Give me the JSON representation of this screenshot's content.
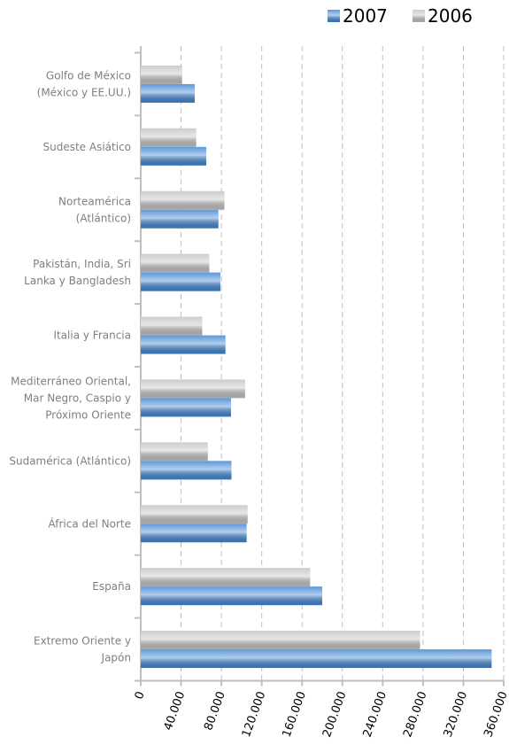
{
  "chart_data": {
    "type": "hbar",
    "categories": [
      [
        "Golfo de México",
        "(México y EE.UU.)"
      ],
      [
        "Sudeste Asiático"
      ],
      [
        "Norteamérica",
        "(Atlántico)"
      ],
      [
        "Pakistán, India, Sri",
        "Lanka y Bangladesh"
      ],
      [
        "Italia y Francia"
      ],
      [
        "Mediterráneo Oriental,",
        "Mar Negro, Caspio y",
        "Próximo Oriente"
      ],
      [
        "Sudamérica (Atlántico)"
      ],
      [
        "África del Norte"
      ],
      [
        "España"
      ],
      [
        "Extremo Oriente y",
        "Japón"
      ]
    ],
    "series": [
      {
        "name": "2007",
        "color": "#3f86d4",
        "values": [
          53500,
          65000,
          77000,
          79000,
          84000,
          89500,
          90000,
          105000,
          180000,
          348000
        ]
      },
      {
        "name": "2006",
        "color": "#c4c4c4",
        "values": [
          41000,
          55000,
          83000,
          68000,
          61000,
          103500,
          66500,
          106000,
          168000,
          277000
        ]
      }
    ],
    "xlim": [
      0,
      360000
    ],
    "xticks": [
      0,
      {
        "value": 40000,
        "label": "40.000"
      },
      {
        "value": 80000,
        "label": "80.000"
      },
      {
        "value": 120000,
        "label": "120.000"
      },
      {
        "value": 160000,
        "label": "160.000"
      },
      {
        "value": 200000,
        "label": "200.000"
      },
      {
        "value": 240000,
        "label": "240.000"
      },
      {
        "value": 280000,
        "label": "280.000"
      },
      {
        "value": 320000,
        "label": "320.000"
      },
      {
        "value": 360000,
        "label": "360.000"
      }
    ],
    "grid": true,
    "legend": "top-right"
  }
}
